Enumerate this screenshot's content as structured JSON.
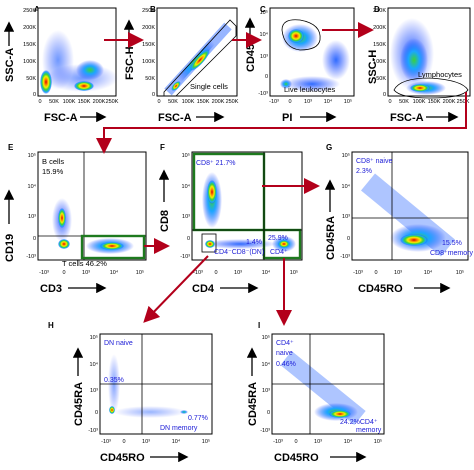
{
  "panels": {
    "A": {
      "letter": "A",
      "xlabel": "FSC-A",
      "ylabel": "SSC-A",
      "yticks": [
        "250K",
        "200K",
        "150K",
        "100K",
        "50K",
        "0"
      ],
      "xticks": [
        "0",
        "50K",
        "100K",
        "150K",
        "200K",
        "250K"
      ]
    },
    "B": {
      "letter": "B",
      "xlabel": "FSC-A",
      "ylabel": "FSC-H",
      "yticks": [
        "250K",
        "200K",
        "150K",
        "100K",
        "50K",
        "0"
      ],
      "xticks": [
        "0",
        "50K",
        "100K",
        "150K",
        "200K",
        "250K"
      ],
      "gate_label": "Single cells"
    },
    "C": {
      "letter": "C",
      "xlabel": "PI",
      "ylabel": "CD45",
      "yticks": [
        "10⁵",
        "10⁴",
        "10³",
        "0",
        "-10³"
      ],
      "xticks": [
        "-10³",
        "0",
        "10³",
        "10⁴",
        "10⁵"
      ],
      "gate_label": "Live leukocytes"
    },
    "D": {
      "letter": "D",
      "xlabel": "FSC-A",
      "ylabel": "SSC-H",
      "yticks": [
        "250K",
        "200K",
        "150K",
        "100K",
        "50K",
        "0"
      ],
      "xticks": [
        "0",
        "50K",
        "100K",
        "150K",
        "200K",
        "250K"
      ],
      "gate_label": "Lymphocytes"
    },
    "E": {
      "letter": "E",
      "xlabel": "CD3",
      "ylabel": "CD19",
      "yticks": [
        "10⁵",
        "10⁴",
        "10³",
        "0",
        "-10³"
      ],
      "xticks": [
        "-10³",
        "0",
        "10³",
        "10⁴",
        "10⁵"
      ],
      "b_cells": "B cells",
      "b_pct": "15.9%",
      "t_cells": "T cells 46.2%"
    },
    "F": {
      "letter": "F",
      "xlabel": "CD4",
      "ylabel": "CD8",
      "yticks": [
        "10⁵",
        "10⁴",
        "10³",
        "0",
        "-10³"
      ],
      "xticks": [
        "-10³",
        "0",
        "10³",
        "10⁴",
        "10⁵"
      ],
      "cd8": "CD8⁺ 21.7%",
      "dn_pct": "1.4%",
      "cd4_pct": "25.9%",
      "dn_label": "CD4⁻CD8⁻(DN)",
      "cd4_label": "CD4⁺"
    },
    "G": {
      "letter": "G",
      "xlabel": "CD45RO",
      "ylabel": "CD45RA",
      "yticks": [
        "10⁵",
        "10⁴",
        "10³",
        "0",
        "-10³"
      ],
      "xticks": [
        "-10³",
        "0",
        "10³",
        "10⁴",
        "10⁵"
      ],
      "naive_label": "CD8⁺ naive",
      "naive_pct": "2.3%",
      "memory_pct": "15.5%",
      "memory_label": "CD8⁺memory"
    },
    "H": {
      "letter": "H",
      "xlabel": "CD45RO",
      "ylabel": "CD45RA",
      "yticks": [
        "10⁵",
        "10⁴",
        "10³",
        "0",
        "-10³"
      ],
      "xticks": [
        "-10³",
        "0",
        "10³",
        "10⁴",
        "10⁵"
      ],
      "naive_label": "DN naive",
      "naive_pct": "0.35%",
      "memory_pct": "0.77%",
      "memory_label": "DN memory"
    },
    "I": {
      "letter": "I",
      "xlabel": "CD45RO",
      "ylabel": "CD45RA",
      "yticks": [
        "10⁵",
        "10⁴",
        "10³",
        "0",
        "-10³"
      ],
      "xticks": [
        "-10³",
        "0",
        "10³",
        "10⁴",
        "10⁵"
      ],
      "naive_label": "CD4⁺",
      "naive_sub": "naive",
      "naive_pct": "0.46%",
      "memory_pct": "24.2%CD4⁺",
      "memory_label": "memory"
    }
  }
}
